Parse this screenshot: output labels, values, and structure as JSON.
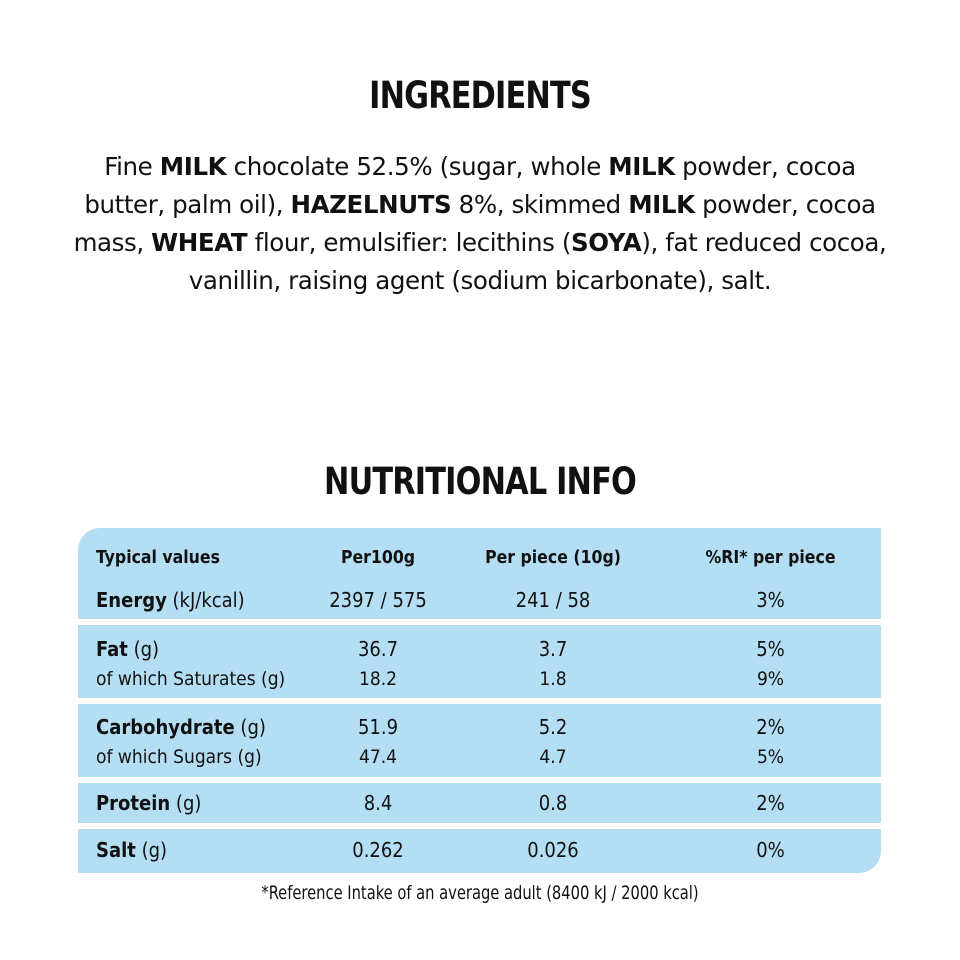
{
  "ingredients": {
    "title": "INGREDIENTS",
    "segments": [
      {
        "text": "Fine ",
        "bold": false
      },
      {
        "text": "MILK",
        "bold": true
      },
      {
        "text": " chocolate 52.5% (sugar, whole ",
        "bold": false
      },
      {
        "text": "MILK",
        "bold": true
      },
      {
        "text": " powder, cocoa butter, palm oil), ",
        "bold": false
      },
      {
        "text": "HAZELNUTS",
        "bold": true
      },
      {
        "text": " 8%, skimmed ",
        "bold": false
      },
      {
        "text": "MILK",
        "bold": true
      },
      {
        "text": " powder, cocoa mass, ",
        "bold": false
      },
      {
        "text": "WHEAT",
        "bold": true
      },
      {
        "text": " flour, emulsifier: lecithins (",
        "bold": false
      },
      {
        "text": "SOYA",
        "bold": true
      },
      {
        "text": "), fat reduced cocoa, vanillin, raising agent (sodium bicarbonate), salt.",
        "bold": false
      }
    ]
  },
  "nutrition": {
    "title": "NUTRITIONAL INFO",
    "headers": [
      "Typical values",
      "Per100g",
      "Per piece (10g)",
      "%RI* per piece"
    ],
    "energy": {
      "label": "Energy",
      "unit": " (kJ/kcal)",
      "per100g": "2397 / 575",
      "per_piece": "241 / 58",
      "ri": "3%"
    },
    "fat": {
      "label": "Fat",
      "unit": " (g)",
      "per100g": "36.7",
      "per_piece": "3.7",
      "ri": "5%"
    },
    "saturates": {
      "label": "of which Saturates (g)",
      "per100g": "18.2",
      "per_piece": "1.8",
      "ri": "9%"
    },
    "carbohydrate": {
      "label": "Carbohydrate",
      "unit": " (g)",
      "per100g": "51.9",
      "per_piece": "5.2",
      "ri": "2%"
    },
    "sugars": {
      "label": "of which Sugars (g)",
      "per100g": "47.4",
      "per_piece": "4.7",
      "ri": "5%"
    },
    "protein": {
      "label": "Protein",
      "unit": " (g)",
      "per100g": "8.4",
      "per_piece": "0.8",
      "ri": "2%"
    },
    "salt": {
      "label": "Salt",
      "unit": " (g)",
      "per100g": "0.262",
      "per_piece": "0.026",
      "ri": "0%"
    },
    "footnote": "*Reference Intake of an average adult (8400 kJ / 2000 kcal)"
  },
  "colors": {
    "table_band": "#b4def4",
    "text": "#111111",
    "background": "#ffffff"
  }
}
